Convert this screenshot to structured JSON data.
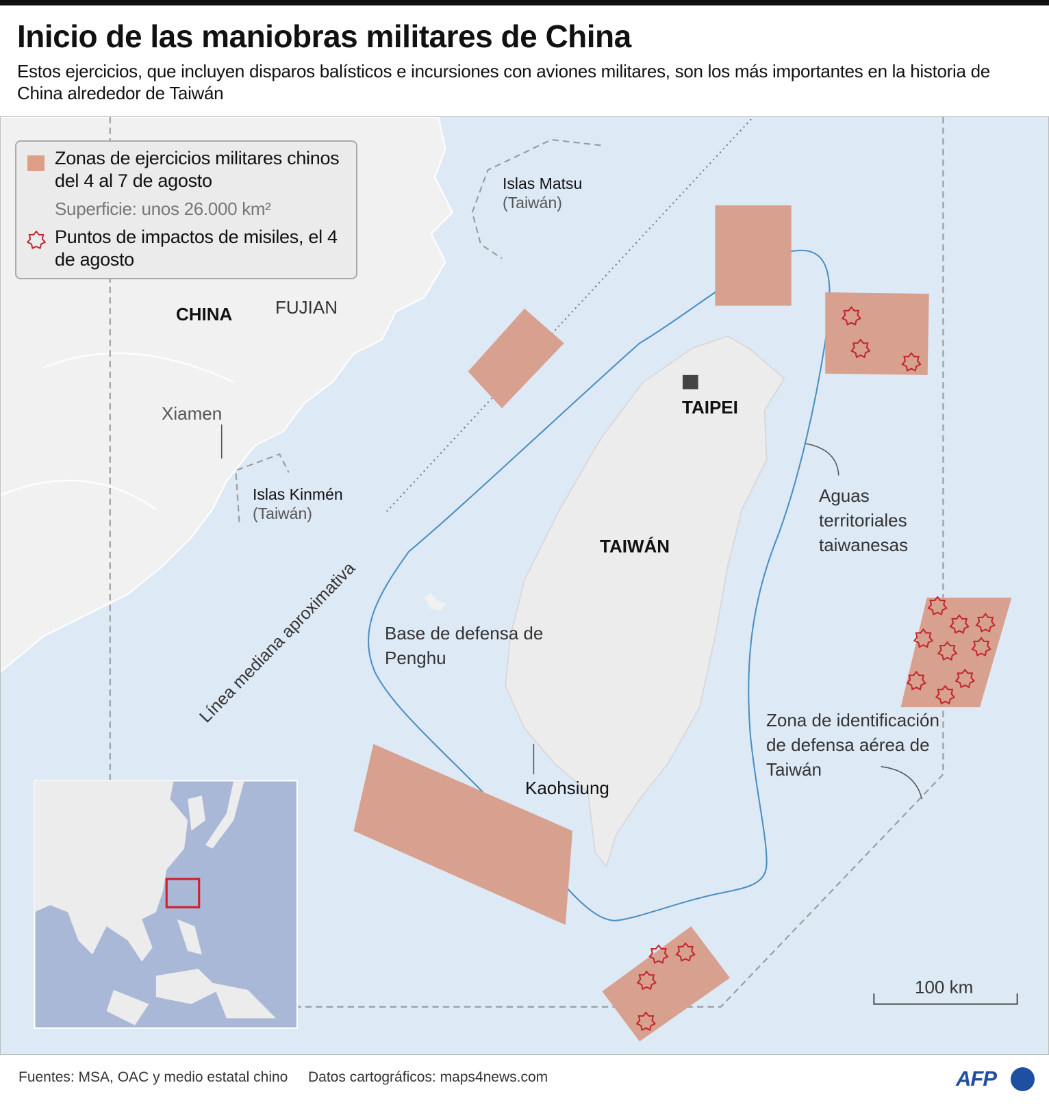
{
  "header": {
    "title": "Inicio de las maniobras militares de China",
    "subtitle": "Estos ejercicios, que incluyen disparos balísticos e incursiones con aviones militares, son los más importantes en la historia de China alrededor de Taiwán"
  },
  "legend": {
    "zones_label": "Zonas de ejercicios militares chinos del 4 al 7 de agosto",
    "area_label": "Superficie: unos 26.000 km²",
    "missiles_label": "Puntos de impactos de misiles, el 4 de agosto"
  },
  "labels": {
    "china": "CHINA",
    "fujian": "FUJIAN",
    "xiamen": "Xiamen",
    "matsu": "Islas Matsu",
    "matsu_sub": "(Taiwán)",
    "kinmen": "Islas Kinmén",
    "kinmen_sub": "(Taiwán)",
    "taipei": "TAIPEI",
    "taiwan": "TAIWÁN",
    "kaohsiung": "Kaohsiung",
    "penghu": "Base de defensa de Penghu",
    "median": "Línea mediana aproximativa",
    "waters": "Aguas territoriales taiwanesas",
    "adiz": "Zona de identificación de defensa aérea de Taiwán"
  },
  "scale": {
    "label": "100 km"
  },
  "footer": {
    "sources": "Fuentes: MSA, OAC y medio estatal chino",
    "cartography": "Datos cartográficos: maps4news.com",
    "logo": "AFP"
  },
  "colors": {
    "sea": "#dee9f6",
    "land": "#f1f1f1",
    "zone": "#d8a08e",
    "missile": "#c0282d",
    "territorial_line": "#4a8fc0",
    "inset_sea": "#a8b8d6",
    "inset_highlight": "#d0202a"
  }
}
